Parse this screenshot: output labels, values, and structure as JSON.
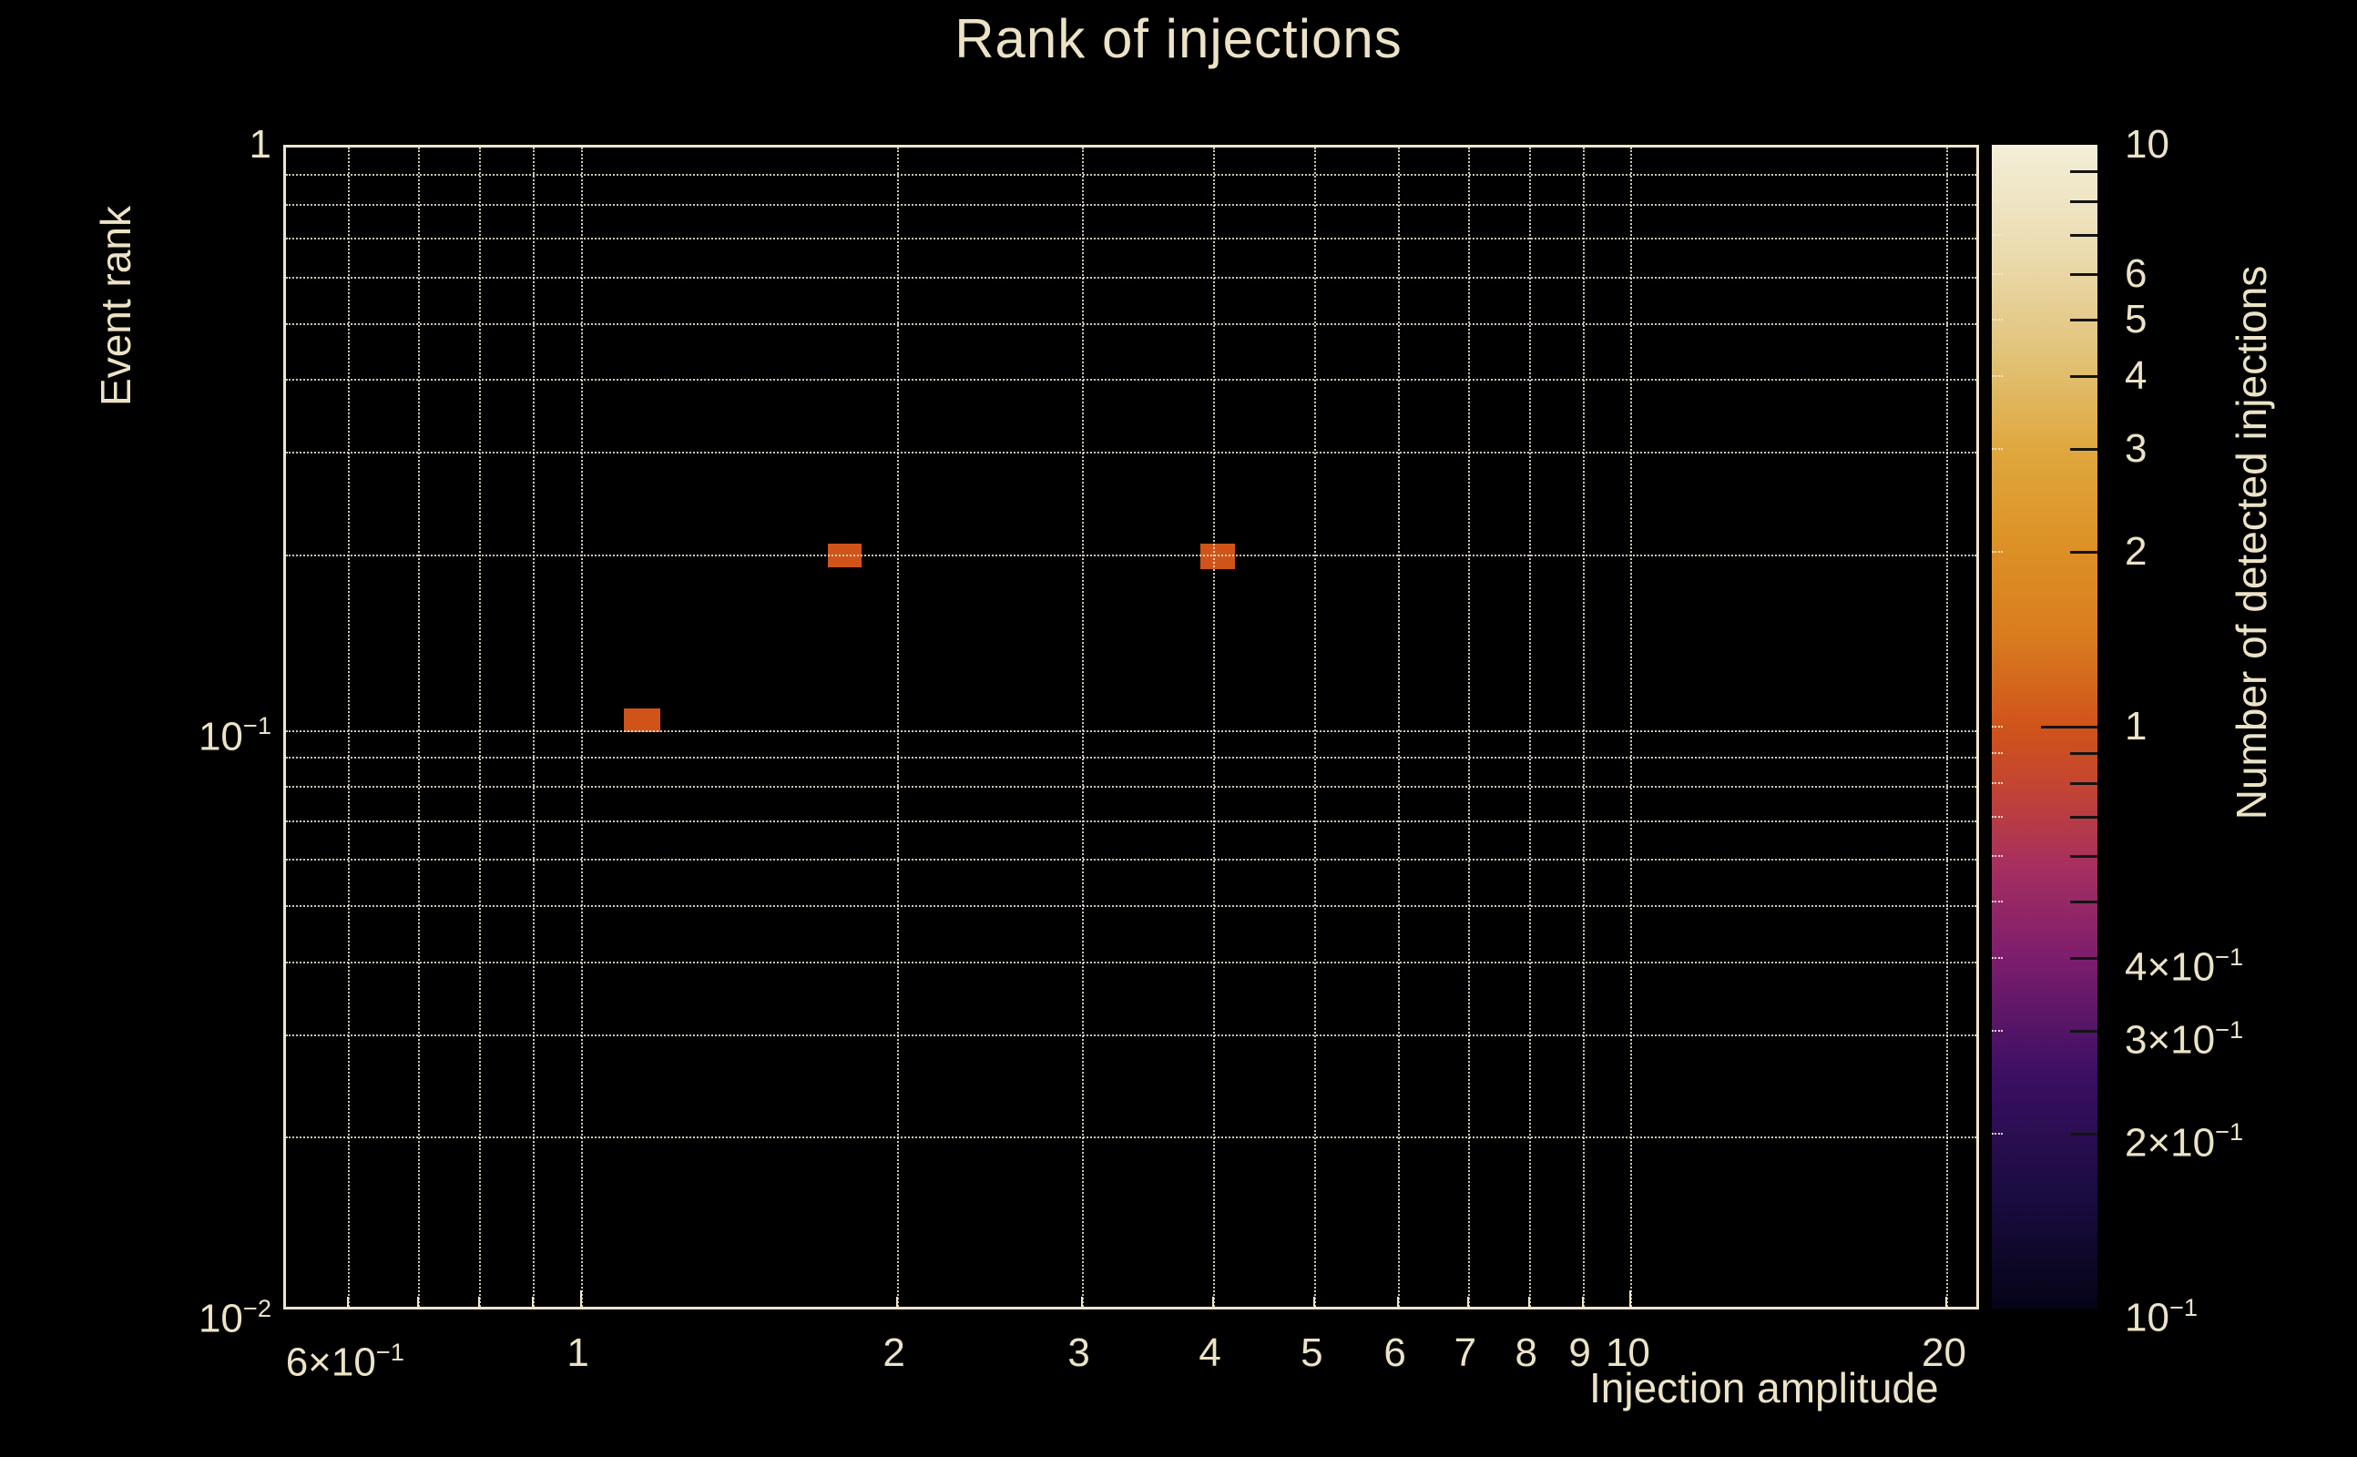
{
  "title": "Rank of injections",
  "colors": {
    "background": "#000000",
    "text": "#ece3c6",
    "spine": "#efe5c8",
    "gridline": "rgba(240,233,210,0.85)",
    "bin_orange": "#d0541a"
  },
  "chart_data": {
    "type": "heatmap",
    "title": "Rank of injections",
    "xlabel": "Injection amplitude",
    "ylabel": "Event rank",
    "x_scale": "log",
    "y_scale": "log",
    "xlim": [
      0.524,
      21.6
    ],
    "ylim": [
      0.01,
      1
    ],
    "grid": "dotted, both major and minor",
    "x_ticks": [
      {
        "v": 0.6,
        "label": "6×10^−1",
        "major": false
      },
      {
        "v": 0.7,
        "label": "",
        "major": false
      },
      {
        "v": 0.8,
        "label": "",
        "major": false
      },
      {
        "v": 0.9,
        "label": "",
        "major": false
      },
      {
        "v": 1,
        "label": "1",
        "major": true
      },
      {
        "v": 2,
        "label": "2",
        "major": false
      },
      {
        "v": 3,
        "label": "3",
        "major": false
      },
      {
        "v": 4,
        "label": "4",
        "major": false
      },
      {
        "v": 5,
        "label": "5",
        "major": false
      },
      {
        "v": 6,
        "label": "6",
        "major": false
      },
      {
        "v": 7,
        "label": "7",
        "major": false
      },
      {
        "v": 8,
        "label": "8",
        "major": false
      },
      {
        "v": 9,
        "label": "9",
        "major": false
      },
      {
        "v": 10,
        "label": "10",
        "major": true
      },
      {
        "v": 20,
        "label": "20",
        "major": false
      }
    ],
    "y_ticks": [
      {
        "v": 1,
        "label": "1",
        "major": true,
        "gridline": false
      },
      {
        "v": 0.9,
        "label": "",
        "major": false,
        "gridline": true
      },
      {
        "v": 0.8,
        "label": "",
        "major": false,
        "gridline": true
      },
      {
        "v": 0.7,
        "label": "",
        "major": false,
        "gridline": true
      },
      {
        "v": 0.6,
        "label": "",
        "major": false,
        "gridline": true
      },
      {
        "v": 0.5,
        "label": "",
        "major": false,
        "gridline": true
      },
      {
        "v": 0.4,
        "label": "",
        "major": false,
        "gridline": true
      },
      {
        "v": 0.3,
        "label": "",
        "major": false,
        "gridline": true
      },
      {
        "v": 0.2,
        "label": "",
        "major": false,
        "gridline": true
      },
      {
        "v": 0.1,
        "label": "10^−1",
        "major": true,
        "gridline": true
      },
      {
        "v": 0.09,
        "label": "",
        "major": false,
        "gridline": true
      },
      {
        "v": 0.08,
        "label": "",
        "major": false,
        "gridline": true
      },
      {
        "v": 0.07,
        "label": "",
        "major": false,
        "gridline": true
      },
      {
        "v": 0.06,
        "label": "",
        "major": false,
        "gridline": true
      },
      {
        "v": 0.05,
        "label": "",
        "major": false,
        "gridline": true
      },
      {
        "v": 0.04,
        "label": "",
        "major": false,
        "gridline": true
      },
      {
        "v": 0.03,
        "label": "",
        "major": false,
        "gridline": true
      },
      {
        "v": 0.02,
        "label": "",
        "major": false,
        "gridline": true
      },
      {
        "v": 0.01,
        "label": "10^−2",
        "major": true,
        "gridline": false
      }
    ],
    "bins": [
      {
        "x0": 1.1,
        "x1": 1.19,
        "y0": 0.099,
        "y1": 0.109,
        "count": 1
      },
      {
        "x0": 1.72,
        "x1": 1.85,
        "y0": 0.19,
        "y1": 0.209,
        "count": 1
      },
      {
        "x0": 3.89,
        "x1": 4.2,
        "y0": 0.189,
        "y1": 0.209,
        "count": 1
      }
    ],
    "points_summary": [
      {
        "x": 1.14,
        "y": 0.105,
        "count": 1
      },
      {
        "x": 1.79,
        "y": 0.2,
        "count": 1
      },
      {
        "x": 4.04,
        "y": 0.2,
        "count": 1
      }
    ],
    "colorbar": {
      "label": "Number of detected injections",
      "scale": "log",
      "clim": [
        0.1,
        10
      ],
      "ticks": [
        {
          "v": 10,
          "label": "10",
          "major": true
        },
        {
          "v": 9,
          "label": "",
          "major": false
        },
        {
          "v": 8,
          "label": "",
          "major": false
        },
        {
          "v": 7,
          "label": "",
          "major": false
        },
        {
          "v": 6,
          "label": "6",
          "major": false
        },
        {
          "v": 5,
          "label": "5",
          "major": false
        },
        {
          "v": 4,
          "label": "4",
          "major": false
        },
        {
          "v": 3,
          "label": "3",
          "major": false
        },
        {
          "v": 2,
          "label": "2",
          "major": false
        },
        {
          "v": 1,
          "label": "1",
          "major": true
        },
        {
          "v": 0.9,
          "label": "",
          "major": false
        },
        {
          "v": 0.8,
          "label": "",
          "major": false
        },
        {
          "v": 0.7,
          "label": "",
          "major": false
        },
        {
          "v": 0.6,
          "label": "",
          "major": false
        },
        {
          "v": 0.5,
          "label": "",
          "major": false
        },
        {
          "v": 0.4,
          "label": "4×10^−1",
          "major": false
        },
        {
          "v": 0.3,
          "label": "3×10^−1",
          "major": false
        },
        {
          "v": 0.2,
          "label": "2×10^−1",
          "major": false
        },
        {
          "v": 0.1,
          "label": "10^−1",
          "major": true
        }
      ],
      "gradient_stops": [
        [
          0.0,
          "#050417"
        ],
        [
          0.1,
          "#1b0c41"
        ],
        [
          0.2,
          "#3b0f63"
        ],
        [
          0.3,
          "#7c1d6d"
        ],
        [
          0.38,
          "#a62f60"
        ],
        [
          0.45,
          "#c44531"
        ],
        [
          0.5,
          "#d0541a"
        ],
        [
          0.58,
          "#d97d1f"
        ],
        [
          0.66,
          "#dd9226"
        ],
        [
          0.74,
          "#dfa83f"
        ],
        [
          0.82,
          "#e2c379"
        ],
        [
          0.9,
          "#ead9ab"
        ],
        [
          1.0,
          "#f4efda"
        ]
      ]
    }
  }
}
